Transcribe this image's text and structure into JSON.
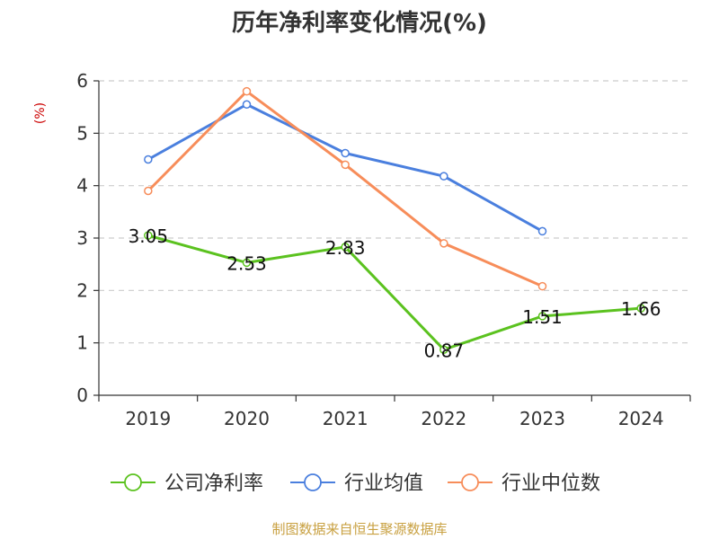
{
  "chart_data": {
    "type": "line",
    "title": "历年净利率变化情况(%)",
    "ylabel": "(%)",
    "xlabel": "",
    "categories": [
      "2019",
      "2020",
      "2021",
      "2022",
      "2023",
      "2024"
    ],
    "ylim": [
      0,
      6
    ],
    "yticks": [
      0,
      1,
      2,
      3,
      4,
      5,
      6
    ],
    "grid": true,
    "legend_position": "bottom",
    "series": [
      {
        "name": "公司净利率",
        "color": "#5bc21f",
        "values": [
          3.05,
          2.53,
          2.83,
          0.87,
          1.51,
          1.66
        ],
        "labels": [
          "3.05",
          "2.53",
          "2.83",
          "0.87",
          "1.51",
          "1.66"
        ]
      },
      {
        "name": "行业均值",
        "color": "#4a7fde",
        "values": [
          4.5,
          5.55,
          4.62,
          4.18,
          3.13,
          null
        ],
        "labels": null
      },
      {
        "name": "行业中位数",
        "color": "#f78d5a",
        "values": [
          3.9,
          5.8,
          4.4,
          2.9,
          2.08,
          null
        ],
        "labels": null
      }
    ]
  },
  "source_text": "制图数据来自恒生聚源数据库"
}
